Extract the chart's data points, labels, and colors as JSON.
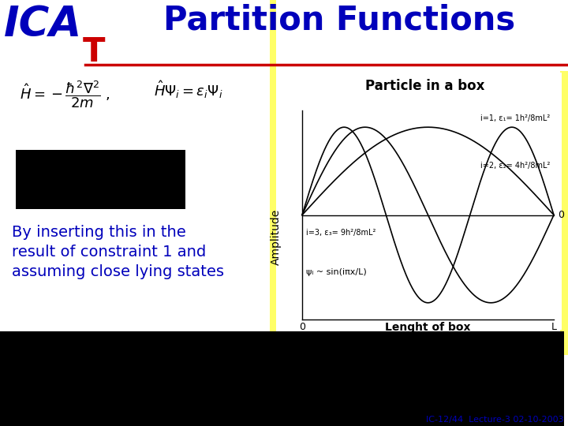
{
  "title": "Partition Functions",
  "logo_ICA": "ICA",
  "logo_T": "T",
  "body_text_line1": "By inserting this in the",
  "body_text_line2": "result of constraint 1 and",
  "body_text_line3": "assuming close lying states",
  "amplitude_label": "Amplitude",
  "pib_title": "Particle in a box",
  "pib_xlabel": "Lenght of box",
  "pib_x0": "0",
  "pib_xL": "L",
  "pib_zero": "0",
  "pib_label1": "i=1, ε₁= 1h²/8mL²",
  "pib_label2": "i=2, ε₂= 4h²/8mL²",
  "pib_label3": "i=3, ε₃= 9h²/8mL²",
  "pib_psi": "ψᵢ ~ sin(iπx/L)",
  "footnote": "IC-12/44  Lecture-3 02-10-2003",
  "bg_white": "#ffffff",
  "bg_black": "#000000",
  "color_blue": "#0000bb",
  "color_red": "#cc0000",
  "color_yellow": "#ffff66"
}
